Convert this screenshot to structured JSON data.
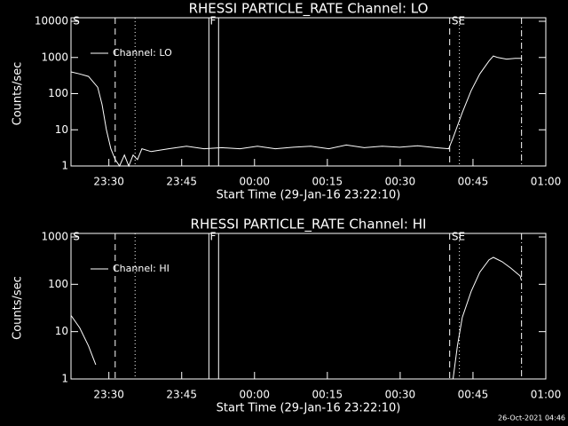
{
  "chart_data": [
    {
      "type": "line",
      "title": "RHESSI PARTICLE_RATE Channel: LO",
      "x_label": "Start Time (29-Jan-16 23:22:10)",
      "y_label": "Counts/sec",
      "log_y": true,
      "ylim": [
        1,
        10000
      ],
      "yticks": [
        1,
        10,
        100,
        1000,
        10000
      ],
      "xlim": [
        22.2,
        120
      ],
      "xticks": [
        {
          "value": 30,
          "label": "23:30"
        },
        {
          "value": 45,
          "label": "23:45"
        },
        {
          "value": 60,
          "label": "00:00"
        },
        {
          "value": 75,
          "label": "00:15"
        },
        {
          "value": 90,
          "label": "00:30"
        },
        {
          "value": 105,
          "label": "00:45"
        },
        {
          "value": 120,
          "label": "01:00"
        }
      ],
      "x": [
        22.2,
        24.0,
        25.8,
        27.7,
        28.6,
        29.5,
        30.4,
        31.3,
        32.2,
        33.2,
        34.1,
        35.0,
        35.9,
        36.8,
        38.7,
        42.3,
        46.0,
        49.6,
        53.3,
        57.0,
        60.6,
        64.3,
        68.0,
        71.6,
        75.3,
        78.9,
        82.6,
        86.3,
        89.9,
        93.6,
        97.3,
        100.0,
        100.9,
        102.8,
        104.6,
        106.4,
        108.3,
        109.2,
        110.1,
        111.9,
        113.7,
        115.0
      ],
      "series": [
        {
          "name": "Channel: LO",
          "color": "#ffffff",
          "values": [
            400,
            350,
            300,
            150,
            50,
            10,
            3,
            1.5,
            1,
            2,
            1,
            2,
            1.5,
            3,
            2.5,
            3,
            3.5,
            3,
            3.2,
            3,
            3.5,
            3,
            3.3,
            3.5,
            3,
            3.8,
            3.2,
            3.5,
            3.3,
            3.6,
            3.2,
            3,
            6,
            30,
            120,
            350,
            800,
            1100,
            1000,
            900,
            950,
            950
          ]
        }
      ],
      "legend": "upper left",
      "markers": [
        {
          "x": 31.3,
          "style": "dashed"
        },
        {
          "x": 35.4,
          "style": "dotted"
        },
        {
          "x": 50.6,
          "style": "solid"
        },
        {
          "x": 52.6,
          "style": "solid"
        },
        {
          "x": 100.2,
          "style": "dashed"
        },
        {
          "x": 102.2,
          "style": "dotted"
        },
        {
          "x": 115.0,
          "style": "dashdot"
        }
      ],
      "annotations": [
        {
          "text": "S",
          "x": 22.6
        },
        {
          "text": "F",
          "x": 50.8
        },
        {
          "text": "SE",
          "x": 100.6
        }
      ]
    },
    {
      "type": "line",
      "title": "RHESSI PARTICLE_RATE Channel: HI",
      "x_label": "Start Time (29-Jan-16 23:22:10)",
      "y_label": "Counts/sec",
      "log_y": true,
      "ylim": [
        1,
        1000
      ],
      "yticks": [
        1,
        10,
        100,
        1000
      ],
      "xlim": [
        22.2,
        120
      ],
      "xticks": [
        {
          "value": 30,
          "label": "23:30"
        },
        {
          "value": 45,
          "label": "23:45"
        },
        {
          "value": 60,
          "label": "00:00"
        },
        {
          "value": 75,
          "label": "00:15"
        },
        {
          "value": 90,
          "label": "00:30"
        },
        {
          "value": 105,
          "label": "00:45"
        },
        {
          "value": 120,
          "label": "01:00"
        }
      ],
      "x": [
        22.2,
        24.0,
        25.8,
        27.3,
        60,
        100.9,
        101.8,
        102.8,
        104.6,
        106.4,
        108.3,
        109.2,
        111.0,
        112.8,
        114.7,
        115.0
      ],
      "series": [
        {
          "name": "Channel: HI",
          "color": "#ffffff",
          "values": [
            22,
            12,
            5,
            2,
            null,
            1,
            5,
            20,
            70,
            180,
            330,
            370,
            300,
            220,
            150,
            120
          ]
        }
      ],
      "legend": "upper left",
      "markers": [
        {
          "x": 31.3,
          "style": "dashed"
        },
        {
          "x": 35.4,
          "style": "dotted"
        },
        {
          "x": 50.6,
          "style": "solid"
        },
        {
          "x": 52.6,
          "style": "solid"
        },
        {
          "x": 100.2,
          "style": "dashed"
        },
        {
          "x": 102.2,
          "style": "dotted"
        },
        {
          "x": 115.0,
          "style": "dashdot"
        }
      ],
      "annotations": [
        {
          "text": "S",
          "x": 22.6
        },
        {
          "text": "F",
          "x": 50.8
        },
        {
          "text": "SE",
          "x": 100.6
        }
      ]
    }
  ],
  "footer": "26-Oct-2021 04:46"
}
